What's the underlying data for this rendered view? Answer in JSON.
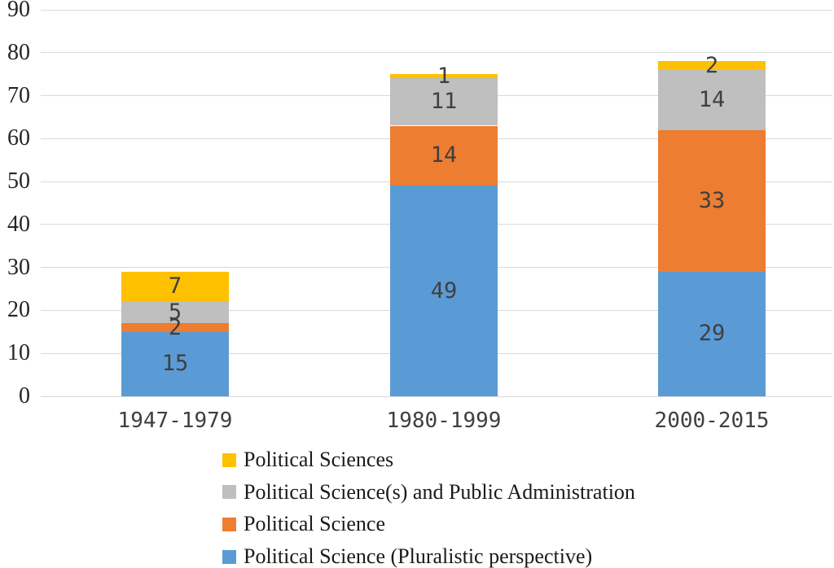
{
  "chart_data": {
    "type": "bar",
    "variant": "stacked-column",
    "title": "",
    "categories": [
      "1947-1979",
      "1980-1999",
      "2000-2015"
    ],
    "series": [
      {
        "name": "Political Science (Pluralistic perspective)",
        "color": "#5B9BD5",
        "values": [
          15,
          49,
          29
        ]
      },
      {
        "name": "Political Science",
        "color": "#ED7D31",
        "values": [
          2,
          14,
          33
        ]
      },
      {
        "name": "Political Science(s) and Public Administration",
        "color": "#BFBFBF",
        "values": [
          5,
          11,
          14
        ]
      },
      {
        "name": "Political Sciences",
        "color": "#FFC000",
        "values": [
          7,
          1,
          2
        ]
      }
    ],
    "y_axis": {
      "min": 0,
      "max": 90,
      "step": 10,
      "ticks": [
        0,
        10,
        20,
        30,
        40,
        50,
        60,
        70,
        80,
        90
      ]
    },
    "grid": true,
    "gridline_color": "#D9D9D9",
    "data_label_color": "#3F3F3F",
    "axis_text_color": "#262626",
    "background": "#FFFFFF",
    "legend": {
      "position": "bottom-left",
      "order": [
        3,
        2,
        1,
        0
      ]
    }
  }
}
